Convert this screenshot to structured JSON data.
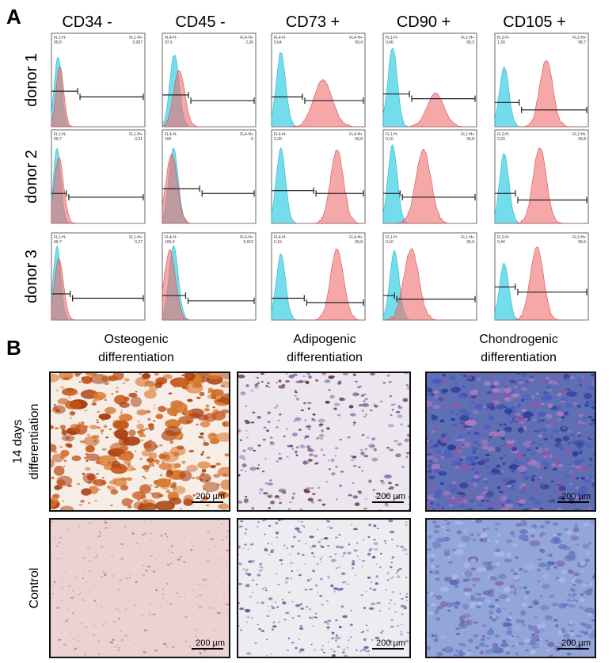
{
  "panel_a": {
    "label": "A",
    "markers": [
      "CD34 -",
      "CD45 -",
      "CD73 +",
      "CD90 +",
      "CD105 +"
    ],
    "donors": [
      "donor 1",
      "donor 2",
      "donor 3"
    ],
    "histograms": [
      [
        {
          "neg_label": "FL1-H-",
          "neg_value": "99,8",
          "pos_label": "FL1-H+",
          "pos_value": "0,097"
        },
        {
          "neg_label": "FL4-H-",
          "neg_value": "97,6",
          "pos_label": "FL4-H+",
          "pos_value": "2,36"
        },
        {
          "neg_label": "FL4-H-",
          "neg_value": "0,64",
          "pos_label": "FL4-H+",
          "pos_value": "99,4"
        },
        {
          "neg_label": "FL1-H-",
          "neg_value": "0,66",
          "pos_label": "FL1-H+",
          "pos_value": "99,3"
        },
        {
          "neg_label": "FL2-H-",
          "neg_value": "1,30",
          "pos_label": "FL2-H+",
          "pos_value": "98,7"
        }
      ],
      [
        {
          "neg_label": "FL1-H-",
          "neg_value": "99,7",
          "pos_label": "FL1-H+",
          "pos_value": "0,31"
        },
        {
          "neg_label": "FL4-H-",
          "neg_value": "100",
          "pos_label": "FL4-H+",
          "pos_value": "0"
        },
        {
          "neg_label": "FL4-H-",
          "neg_value": "0,20",
          "pos_label": "FL4-H+",
          "pos_value": "99,8"
        },
        {
          "neg_label": "FL1-H-",
          "neg_value": "0,10",
          "pos_label": "FL1-H+",
          "pos_value": "99,8"
        },
        {
          "neg_label": "FL2-H-",
          "neg_value": "0,20",
          "pos_label": "FL2-H+",
          "pos_value": "99,8"
        }
      ],
      [
        {
          "neg_label": "FL1-H-",
          "neg_value": "99,7",
          "pos_label": "FL1-H+",
          "pos_value": "0,27"
        },
        {
          "neg_label": "FL4-H-",
          "neg_value": "100,0",
          "pos_label": "FL4-H+",
          "pos_value": "0,010"
        },
        {
          "neg_label": "FL4-H-",
          "neg_value": "0,15",
          "pos_label": "FL4-H+",
          "pos_value": "99,8"
        },
        {
          "neg_label": "FL1-H-",
          "neg_value": "0,10",
          "pos_label": "FL1-H+",
          "pos_value": "99,9"
        },
        {
          "neg_label": "FL2-H-",
          "neg_value": "0,44",
          "pos_label": "FL2-H+",
          "pos_value": "99,6"
        }
      ]
    ]
  },
  "panel_b": {
    "label": "B",
    "columns": [
      [
        "Osteogenic",
        "differentiation"
      ],
      [
        "Adipogenic",
        "differentiation"
      ],
      [
        "Chondrogenic",
        "differentiation"
      ]
    ],
    "rows": [
      [
        "14 days",
        "differentiation"
      ],
      [
        "Control"
      ]
    ],
    "scale_bars": [
      [
        "200 µm",
        "200 µm",
        "200 µm"
      ],
      [
        "200 µm",
        "200 µm",
        "200 µm"
      ]
    ]
  }
}
